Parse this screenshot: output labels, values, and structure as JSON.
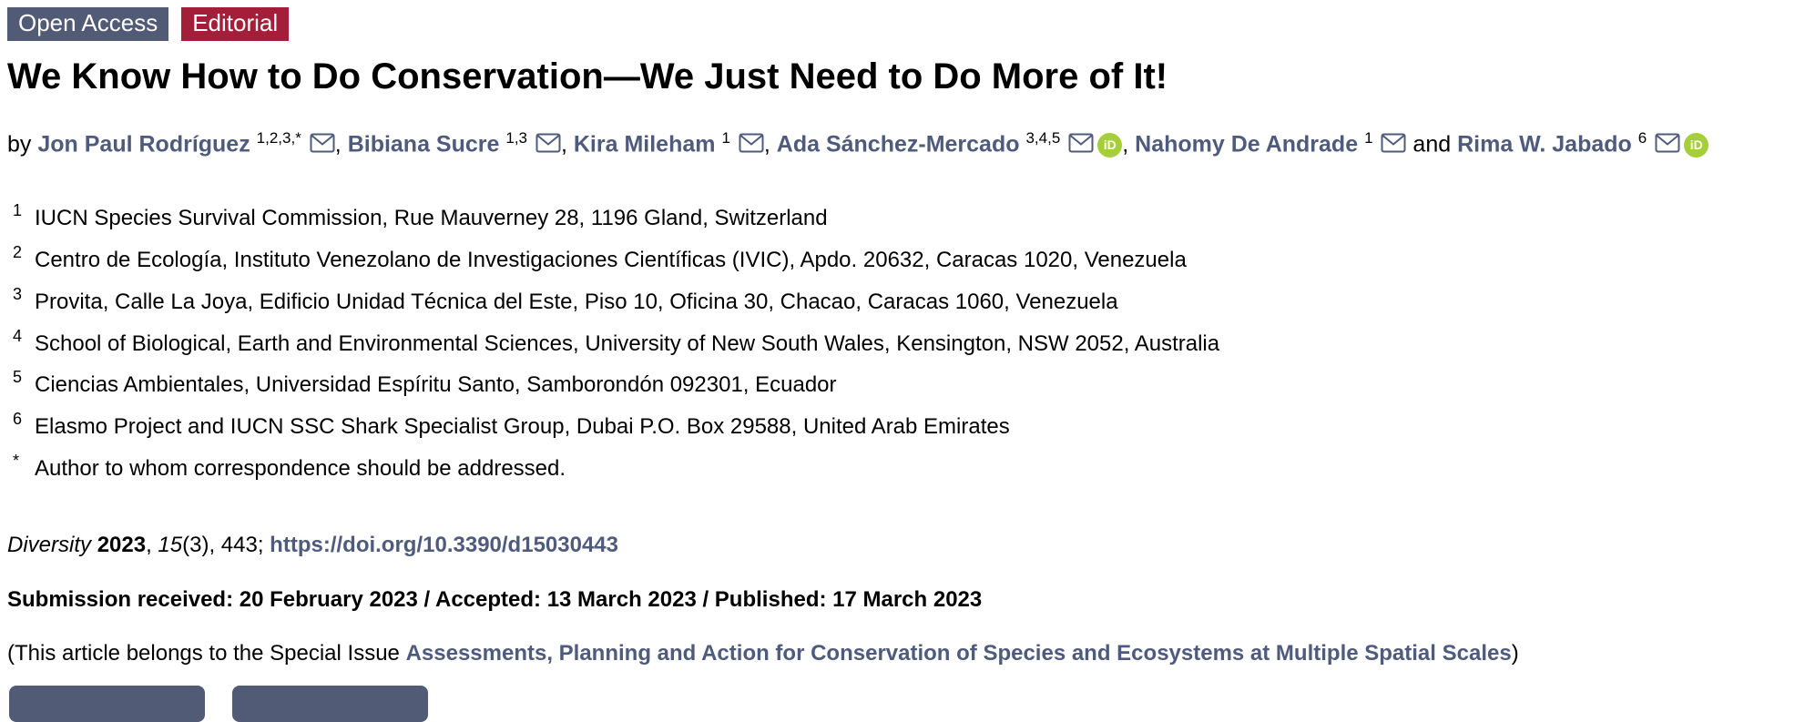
{
  "badges": [
    {
      "name": "open-access-badge",
      "label": "Open Access",
      "color": "#525b76"
    },
    {
      "name": "editorial-badge",
      "label": "Editorial",
      "color": "#a41e39"
    }
  ],
  "title": "We Know How to Do Conservation—We Just Need to Do More of It!",
  "byline": {
    "prefix": "by ",
    "authors": [
      {
        "name": "Jon Paul Rodríguez",
        "sup": "1,2,3,*",
        "email_icon": true,
        "orcid_icon": false,
        "sep": ", "
      },
      {
        "name": "Bibiana Sucre",
        "sup": "1,3",
        "email_icon": true,
        "orcid_icon": false,
        "sep": ", "
      },
      {
        "name": "Kira Mileham",
        "sup": "1",
        "email_icon": true,
        "orcid_icon": false,
        "sep": ", "
      },
      {
        "name": "Ada Sánchez-Mercado",
        "sup": "3,4,5",
        "email_icon": true,
        "orcid_icon": true,
        "sep": ", "
      },
      {
        "name": "Nahomy De Andrade",
        "sup": "1",
        "email_icon": true,
        "orcid_icon": false,
        "sep": " and "
      },
      {
        "name": "Rima W. Jabado",
        "sup": "6",
        "email_icon": true,
        "orcid_icon": true,
        "sep": ""
      }
    ]
  },
  "icons": {
    "email": "envelope-icon",
    "orcid": "orcid-id-icon",
    "orcid_label": "iD"
  },
  "affiliations": [
    {
      "marker": "1",
      "text": "IUCN Species Survival Commission, Rue Mauverney 28, 1196 Gland, Switzerland"
    },
    {
      "marker": "2",
      "text": "Centro de Ecología, Instituto Venezolano de Investigaciones Científicas (IVIC), Apdo. 20632, Caracas 1020, Venezuela"
    },
    {
      "marker": "3",
      "text": "Provita, Calle La Joya, Edificio Unidad Técnica del Este, Piso 10, Oficina 30, Chacao, Caracas 1060, Venezuela"
    },
    {
      "marker": "4",
      "text": "School of Biological, Earth and Environmental Sciences, University of New South Wales, Kensington, NSW 2052, Australia"
    },
    {
      "marker": "5",
      "text": "Ciencias Ambientales, Universidad Espíritu Santo, Samborondón 092301, Ecuador"
    },
    {
      "marker": "6",
      "text": "Elasmo Project and IUCN SSC Shark Specialist Group, Dubai P.O. Box 29588, United Arab Emirates"
    },
    {
      "marker": "*",
      "text": "Author to whom correspondence should be addressed."
    }
  ],
  "citation": {
    "journal": "Diversity",
    "space": " ",
    "year": "2023",
    "sep": ", ",
    "volume": "15",
    "issue_pages": "(3), 443; ",
    "doi": "https://doi.org/10.3390/d15030443"
  },
  "dates": "Submission received: 20 February 2023 / Accepted: 13 March 2023 / Published: 17 March 2023",
  "special_issue": {
    "prefix": "(This article belongs to the Special Issue ",
    "link": "Assessments, Planning and Action for Conservation of Species and Ecosystems at Multiple Spatial Scales",
    "suffix": ")"
  },
  "colors": {
    "link": "#4e5b7c",
    "badge_open_access": "#525b76",
    "badge_editorial": "#a41e39",
    "orcid_green": "#a6ce39",
    "button": "#525b76"
  }
}
